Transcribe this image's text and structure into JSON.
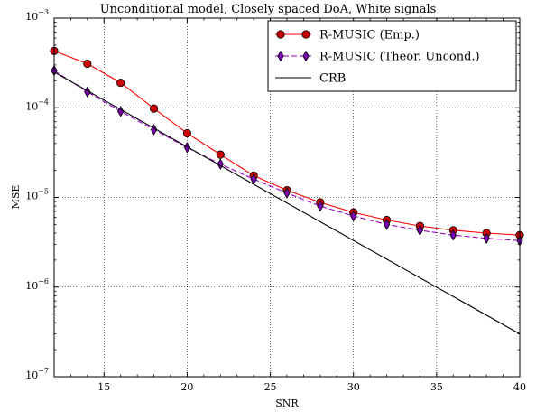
{
  "chart_data": {
    "type": "line",
    "title": "Unconditional model, Closely spaced DoA, White signals",
    "xlabel": "SNR",
    "ylabel": "MSE",
    "xlim": [
      12,
      40
    ],
    "ylim": [
      1e-07,
      0.001
    ],
    "yscale": "log",
    "grid": true,
    "legend_position": "top-right",
    "x_ticks": [
      15,
      20,
      25,
      30,
      35,
      40
    ],
    "y_ticks": [
      {
        "value": 1e-07,
        "base": "10",
        "exp": "−7"
      },
      {
        "value": 1e-06,
        "base": "10",
        "exp": "−6"
      },
      {
        "value": 1e-05,
        "base": "10",
        "exp": "−5"
      },
      {
        "value": 0.0001,
        "base": "10",
        "exp": "−4"
      },
      {
        "value": 0.001,
        "base": "10",
        "exp": "−3"
      }
    ],
    "series": [
      {
        "name": "R-MUSIC (Emp.)",
        "color": "#ff0000",
        "marker_fill": "#cc0000",
        "marker": "circle",
        "dashed": false,
        "x": [
          12,
          14,
          16,
          18,
          20,
          22,
          24,
          26,
          28,
          30,
          32,
          34,
          36,
          38,
          40
        ],
        "y": [
          0.00043,
          0.00031,
          0.00019,
          9.8e-05,
          5.2e-05,
          3e-05,
          1.75e-05,
          1.2e-05,
          8.8e-06,
          6.8e-06,
          5.6e-06,
          4.8e-06,
          4.3e-06,
          4e-06,
          3.8e-06
        ]
      },
      {
        "name": "R-MUSIC (Theor. Uncond.)",
        "color": "#9900cc",
        "marker_fill": "#7a00b0",
        "marker": "diamond",
        "dashed": true,
        "x": [
          12,
          14,
          16,
          18,
          20,
          22,
          24,
          26,
          28,
          30,
          32,
          34,
          36,
          38,
          40
        ],
        "y": [
          0.00026,
          0.00015,
          9.1e-05,
          5.7e-05,
          3.6e-05,
          2.35e-05,
          1.6e-05,
          1.12e-05,
          8e-06,
          6.2e-06,
          5e-06,
          4.3e-06,
          3.8e-06,
          3.5e-06,
          3.3e-06
        ]
      },
      {
        "name": "CRB",
        "color": "#000000",
        "marker": "none",
        "dashed": false,
        "x": [
          12,
          40
        ],
        "y": [
          0.00025,
          3e-07
        ]
      }
    ]
  }
}
